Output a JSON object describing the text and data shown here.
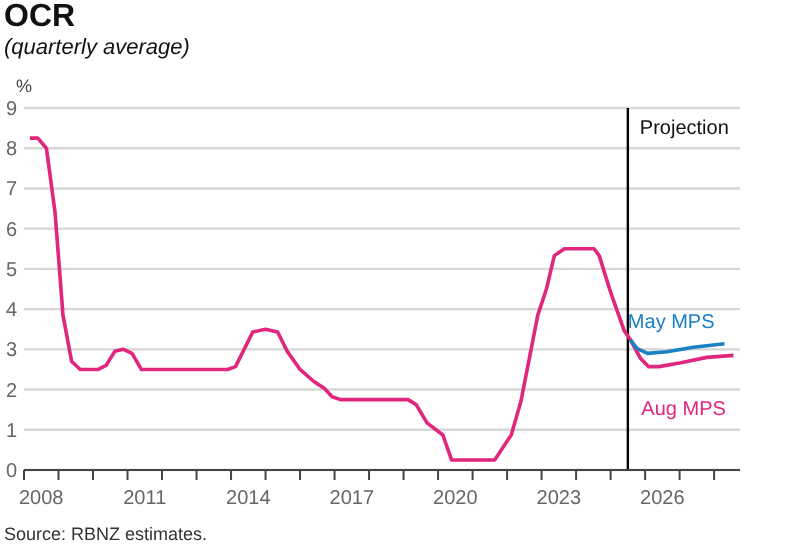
{
  "chart_data": {
    "type": "line",
    "title": "OCR",
    "subtitle": "(quarterly average)",
    "ylabel": "%",
    "annotations": [
      "Source: RBNZ estimates."
    ],
    "xlim": [
      2008,
      2028.75
    ],
    "xticks": [
      {
        "value": 2008,
        "label": null
      },
      {
        "value": 2008.5,
        "label": "2008"
      },
      {
        "value": 2009,
        "label": null
      },
      {
        "value": 2010,
        "label": null
      },
      {
        "value": 2011,
        "label": null
      },
      {
        "value": 2011.5,
        "label": "2011"
      },
      {
        "value": 2012,
        "label": null
      },
      {
        "value": 2013,
        "label": null
      },
      {
        "value": 2014,
        "label": null
      },
      {
        "value": 2014.5,
        "label": "2014"
      },
      {
        "value": 2015,
        "label": null
      },
      {
        "value": 2016,
        "label": null
      },
      {
        "value": 2017,
        "label": null
      },
      {
        "value": 2017.5,
        "label": "2017"
      },
      {
        "value": 2018,
        "label": null
      },
      {
        "value": 2019,
        "label": null
      },
      {
        "value": 2020,
        "label": null
      },
      {
        "value": 2020.5,
        "label": "2020"
      },
      {
        "value": 2021,
        "label": null
      },
      {
        "value": 2022,
        "label": null
      },
      {
        "value": 2023,
        "label": null
      },
      {
        "value": 2023.5,
        "label": "2023"
      },
      {
        "value": 2024,
        "label": null
      },
      {
        "value": 2025,
        "label": null
      },
      {
        "value": 2026,
        "label": null
      },
      {
        "value": 2026.5,
        "label": "2026"
      },
      {
        "value": 2027,
        "label": null
      },
      {
        "value": 2028,
        "label": null
      }
    ],
    "ylim": [
      0,
      9
    ],
    "yticks": [
      0,
      1,
      2,
      3,
      4,
      5,
      6,
      7,
      8,
      9
    ],
    "grid": "y",
    "legend": false,
    "marker": "none",
    "line_style": "solid",
    "ref_lines": [
      {
        "axis": "x",
        "value": 2025.5,
        "label": "Projection",
        "color": "#000000"
      }
    ],
    "series": [
      {
        "name": "Aug MPS",
        "color": "#e0267d",
        "x": [
          2008.17,
          2008.4,
          2008.65,
          2008.9,
          2009.13,
          2009.38,
          2009.63,
          2010.15,
          2010.38,
          2010.63,
          2010.88,
          2011.13,
          2011.4,
          2013.9,
          2014.13,
          2014.63,
          2015.0,
          2015.35,
          2015.63,
          2016.0,
          2016.4,
          2016.7,
          2016.93,
          2017.17,
          2019.13,
          2019.37,
          2019.68,
          2020.14,
          2020.39,
          2021.64,
          2022.12,
          2022.4,
          2022.89,
          2023.14,
          2023.37,
          2023.66,
          2024.52,
          2024.67,
          2025.0,
          2025.39,
          2025.58,
          2025.87,
          2026.1,
          2026.4,
          2027.0,
          2027.79,
          2028.56
        ],
        "values": [
          8.25,
          8.25,
          8.0,
          6.4,
          3.85,
          2.7,
          2.5,
          2.5,
          2.6,
          2.95,
          3.0,
          2.9,
          2.5,
          2.5,
          2.57,
          3.43,
          3.5,
          3.43,
          2.95,
          2.5,
          2.2,
          2.03,
          1.82,
          1.75,
          1.75,
          1.62,
          1.17,
          0.87,
          0.25,
          0.25,
          0.87,
          1.7,
          3.85,
          4.5,
          5.33,
          5.5,
          5.5,
          5.33,
          4.42,
          3.47,
          3.23,
          2.77,
          2.57,
          2.57,
          2.66,
          2.8,
          2.85
        ]
      },
      {
        "name": "May MPS",
        "color": "#1b80c4",
        "x": [
          2025.58,
          2025.77,
          2026.07,
          2026.64,
          2027.4,
          2028.3
        ],
        "values": [
          3.23,
          3.02,
          2.9,
          2.94,
          3.05,
          3.14
        ]
      }
    ]
  }
}
